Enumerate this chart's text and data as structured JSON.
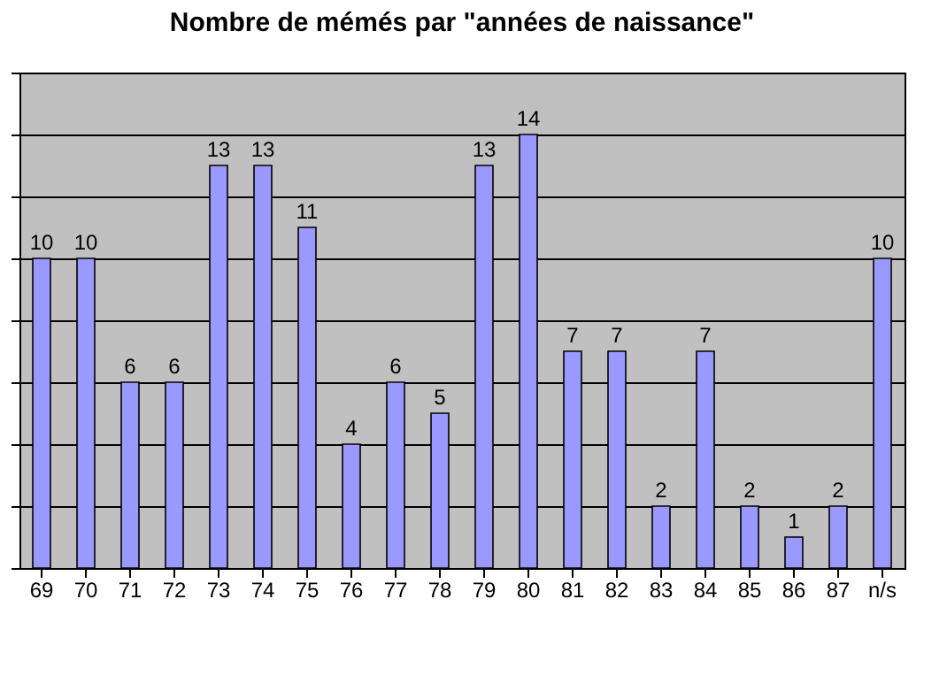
{
  "chart_data": {
    "type": "bar",
    "title": "Nombre de mémés par \"années de naissance\"",
    "categories": [
      "69",
      "70",
      "71",
      "72",
      "73",
      "74",
      "75",
      "76",
      "77",
      "78",
      "79",
      "80",
      "81",
      "82",
      "83",
      "84",
      "85",
      "86",
      "87",
      "n/s"
    ],
    "values": [
      10,
      10,
      6,
      6,
      13,
      13,
      11,
      4,
      6,
      5,
      13,
      14,
      7,
      7,
      2,
      7,
      2,
      1,
      2,
      10
    ],
    "color": "#9999ff",
    "data_labels": true,
    "grid": "y",
    "tick_labels": "x",
    "ylim": [
      0,
      16
    ],
    "yticks": [
      {
        "value": 0,
        "label": null
      },
      {
        "value": 2,
        "label": null
      },
      {
        "value": 4,
        "label": null
      },
      {
        "value": 6,
        "label": null
      },
      {
        "value": 8,
        "label": null
      },
      {
        "value": 10,
        "label": null
      },
      {
        "value": 12,
        "label": null
      },
      {
        "value": 14,
        "label": null
      },
      {
        "value": 16,
        "label": null
      }
    ]
  }
}
